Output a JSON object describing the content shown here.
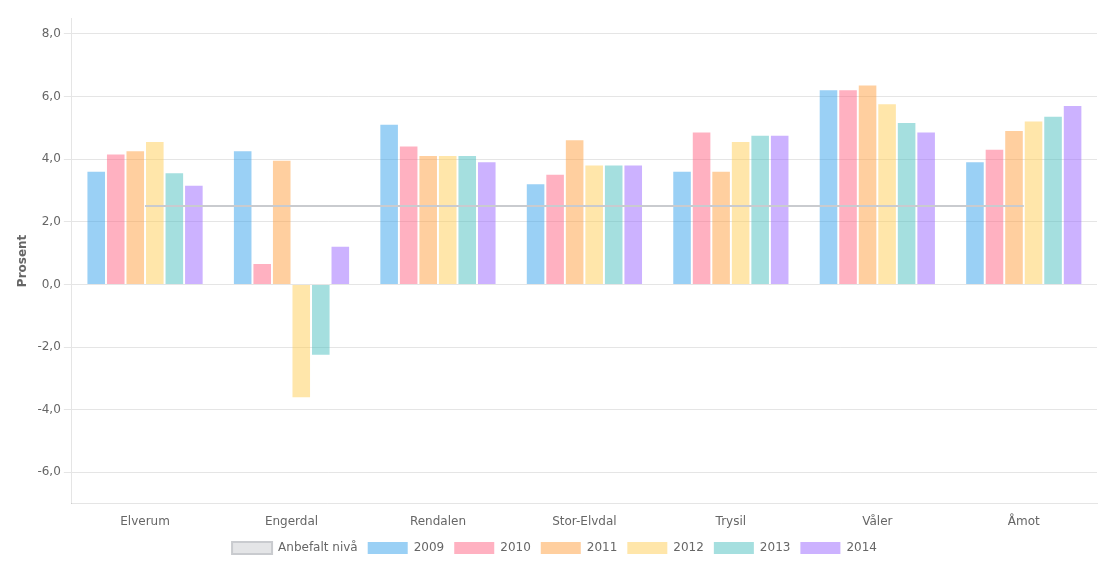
{
  "chart_data": {
    "type": "bar",
    "categories": [
      "Elverum",
      "Engerdal",
      "Rendalen",
      "Stor-Elvdal",
      "Trysil",
      "Våler",
      "Åmot"
    ],
    "series": [
      {
        "name": "2009",
        "values": [
          3.6,
          4.25,
          5.1,
          3.2,
          3.6,
          6.2,
          3.9
        ]
      },
      {
        "name": "2010",
        "values": [
          4.15,
          0.65,
          4.4,
          3.5,
          4.85,
          6.2,
          4.3
        ]
      },
      {
        "name": "2011",
        "values": [
          4.25,
          3.95,
          4.1,
          4.6,
          3.6,
          6.35,
          4.9
        ]
      },
      {
        "name": "2012",
        "values": [
          4.55,
          -3.6,
          4.1,
          3.8,
          4.55,
          5.75,
          5.2
        ]
      },
      {
        "name": "2013",
        "values": [
          3.55,
          -2.25,
          4.1,
          3.8,
          4.75,
          5.15,
          5.35
        ]
      },
      {
        "name": "2014",
        "values": [
          3.15,
          1.2,
          3.9,
          3.8,
          4.75,
          4.85,
          5.7
        ]
      },
      {
        "name": "Anbefalt nivå",
        "type": "line",
        "values": [
          2.5,
          2.5,
          2.5,
          2.5,
          2.5,
          2.5,
          2.5
        ]
      }
    ],
    "ylabel": "Prosent",
    "ylim": [
      -7.0,
      8.5
    ],
    "yticks": [
      {
        "value": -6.0,
        "label": "-6,0"
      },
      {
        "value": -4.0,
        "label": "-4,0"
      },
      {
        "value": -2.0,
        "label": "-2,0"
      },
      {
        "value": 0.0,
        "label": "0,0"
      },
      {
        "value": 2.0,
        "label": "2,0"
      },
      {
        "value": 4.0,
        "label": "4,0"
      },
      {
        "value": 6.0,
        "label": "6,0"
      },
      {
        "value": 8.0,
        "label": "8,0"
      }
    ],
    "grid": true,
    "legend": "bottom"
  }
}
